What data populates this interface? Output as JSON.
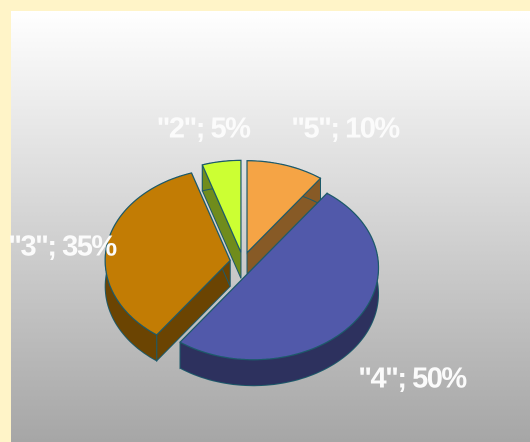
{
  "chart_data": {
    "type": "pie",
    "values": [
      10,
      50,
      35,
      5
    ],
    "value_labels": [
      "\"5\"; 10%",
      "\"4\"; 50%",
      "\"3\"; 35%",
      "\"2\"; 5%"
    ],
    "colors": [
      "#f5a445",
      "#5159aa",
      "#c27c04",
      "#ccff33"
    ]
  }
}
